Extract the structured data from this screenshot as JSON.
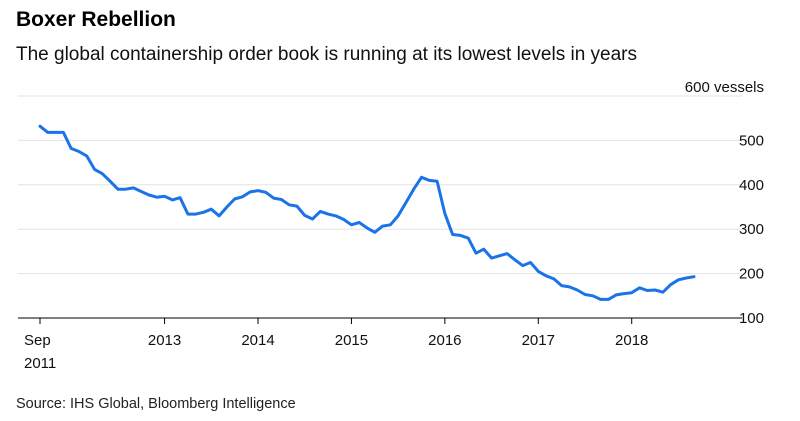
{
  "title": "Boxer Rebellion",
  "subtitle": "The global containership order book is running at its lowest levels in years",
  "source": "Source: IHS Global, Bloomberg Intelligence",
  "colors": {
    "line": "#1a73e8",
    "grid": "#e3e3e3",
    "axis": "#000000"
  },
  "chart_data": {
    "type": "line",
    "title": "Boxer Rebellion",
    "subtitle": "The global containership order book is running at its lowest levels in years",
    "xlabel": "",
    "ylabel": "vessels",
    "ylim": [
      100,
      600
    ],
    "xlim": [
      "2011-09",
      "2018-09"
    ],
    "grid": true,
    "y_ticks": [
      {
        "value": 600,
        "label": "600 vessels"
      },
      {
        "value": 500,
        "label": "500"
      },
      {
        "value": 400,
        "label": "400"
      },
      {
        "value": 300,
        "label": "300"
      },
      {
        "value": 200,
        "label": "200"
      },
      {
        "value": 100,
        "label": "100"
      }
    ],
    "x_ticks": [
      {
        "value": "2011-09",
        "label": "Sep",
        "label2": "2011"
      },
      {
        "value": "2013-01",
        "label": "2013"
      },
      {
        "value": "2014-01",
        "label": "2014"
      },
      {
        "value": "2015-01",
        "label": "2015"
      },
      {
        "value": "2016-01",
        "label": "2016"
      },
      {
        "value": "2017-01",
        "label": "2017"
      },
      {
        "value": "2018-01",
        "label": "2018"
      }
    ],
    "series": [
      {
        "x": [
          "2011-09",
          "2011-10",
          "2011-11",
          "2011-12",
          "2012-01",
          "2012-02",
          "2012-03",
          "2012-04",
          "2012-05",
          "2012-06",
          "2012-07",
          "2012-08",
          "2012-09",
          "2012-10",
          "2012-11",
          "2012-12",
          "2013-01",
          "2013-02",
          "2013-03",
          "2013-04",
          "2013-05",
          "2013-06",
          "2013-07",
          "2013-08",
          "2013-09",
          "2013-10",
          "2013-11",
          "2013-12",
          "2014-01",
          "2014-02",
          "2014-03",
          "2014-04",
          "2014-05",
          "2014-06",
          "2014-07",
          "2014-08",
          "2014-09",
          "2014-10",
          "2014-11",
          "2014-12",
          "2015-01",
          "2015-02",
          "2015-03",
          "2015-04",
          "2015-05",
          "2015-06",
          "2015-07",
          "2015-08",
          "2015-09",
          "2015-10",
          "2015-11",
          "2015-12",
          "2016-01",
          "2016-02",
          "2016-03",
          "2016-04",
          "2016-05",
          "2016-06",
          "2016-07",
          "2016-08",
          "2016-09",
          "2016-10",
          "2016-11",
          "2016-12",
          "2017-01",
          "2017-02",
          "2017-03",
          "2017-04",
          "2017-05",
          "2017-06",
          "2017-07",
          "2017-08",
          "2017-09",
          "2017-10",
          "2017-11",
          "2017-12",
          "2018-01",
          "2018-02",
          "2018-03",
          "2018-04",
          "2018-05",
          "2018-06",
          "2018-07",
          "2018-08",
          "2018-09"
        ],
        "values": [
          532,
          518,
          518,
          518,
          482,
          475,
          465,
          435,
          425,
          408,
          390,
          390,
          393,
          385,
          377,
          372,
          374,
          366,
          371,
          334,
          334,
          338,
          345,
          330,
          350,
          368,
          373,
          384,
          387,
          383,
          370,
          367,
          355,
          352,
          331,
          323,
          340,
          334,
          330,
          322,
          310,
          315,
          303,
          293,
          307,
          310,
          330,
          360,
          390,
          417,
          410,
          408,
          335,
          288,
          286,
          280,
          246,
          255,
          235,
          240,
          245,
          231,
          218,
          225,
          205,
          195,
          188,
          173,
          170,
          163,
          153,
          150,
          142,
          142,
          152,
          155,
          157,
          168,
          162,
          163,
          158,
          175,
          186,
          190,
          193
        ]
      }
    ]
  }
}
